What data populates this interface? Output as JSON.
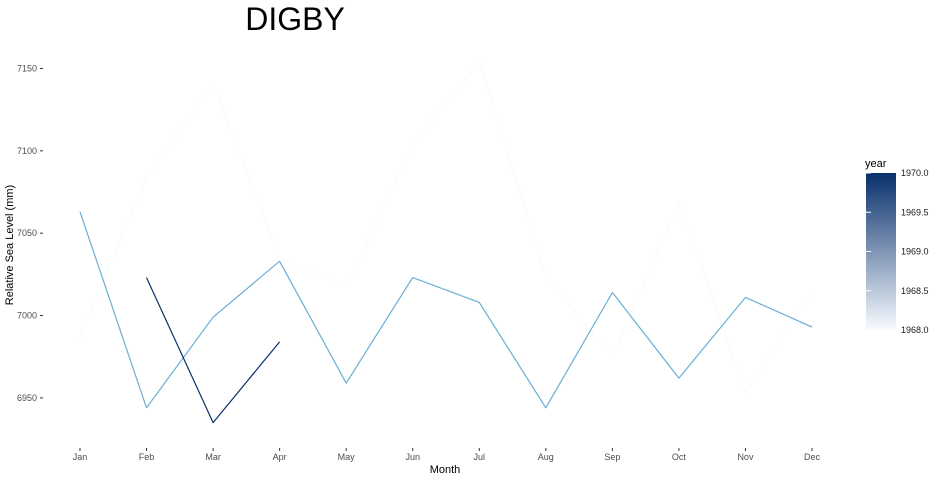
{
  "chart_data": {
    "type": "line",
    "title": "DIGBY",
    "xlabel": "Month",
    "ylabel": "Relative Sea Level (mm)",
    "categories": [
      "Jan",
      "Feb",
      "Mar",
      "Apr",
      "May",
      "Jun",
      "Jul",
      "Aug",
      "Sep",
      "Oct",
      "Nov",
      "Dec"
    ],
    "ylim": [
      6922,
      7160
    ],
    "yticks": [
      6950,
      7000,
      7050,
      7100,
      7150
    ],
    "grid": false,
    "series": [
      {
        "name": "1968",
        "color": "#f7fbff",
        "values": [
          6987,
          7084,
          7141,
          7035,
          7017,
          7104,
          7154,
          7024,
          6975,
          7069,
          6953,
          7014
        ]
      },
      {
        "name": "1969",
        "color": "#6baed6",
        "values": [
          7063,
          6944,
          6999,
          7033,
          6959,
          7023,
          7008,
          6944,
          7014,
          6962,
          7011,
          6993
        ]
      },
      {
        "name": "1970",
        "color": "#08306b",
        "values": [
          null,
          7023,
          6935,
          6984,
          null,
          null,
          null,
          null,
          null,
          null,
          null,
          null
        ]
      }
    ],
    "legend": {
      "title": "year",
      "position": "right",
      "type": "colorbar",
      "range": [
        1968.0,
        1970.0
      ],
      "low_color": "#f7fbff",
      "high_color": "#08306b",
      "ticks": [
        "1968.0",
        "1968.5",
        "1969.0",
        "1969.5",
        "1970.0"
      ]
    }
  }
}
